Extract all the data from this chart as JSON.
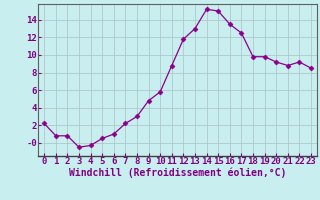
{
  "x": [
    0,
    1,
    2,
    3,
    4,
    5,
    6,
    7,
    8,
    9,
    10,
    11,
    12,
    13,
    14,
    15,
    16,
    17,
    18,
    19,
    20,
    21,
    22,
    23
  ],
  "y": [
    2.2,
    0.8,
    0.8,
    -0.5,
    -0.3,
    0.5,
    1.0,
    2.2,
    3.0,
    4.8,
    5.8,
    8.8,
    11.8,
    13.0,
    15.2,
    15.0,
    13.5,
    12.5,
    9.8,
    9.8,
    9.2,
    8.8,
    9.2,
    8.5
  ],
  "line_color": "#8b008b",
  "marker": "D",
  "marker_size": 2.5,
  "bg_color": "#c8eef0",
  "grid_color": "#b0c8c8",
  "xlabel": "Windchill (Refroidissement éolien,°C)",
  "xlim": [
    -0.5,
    23.5
  ],
  "ylim": [
    -1.5,
    15.8
  ],
  "yticks": [
    0,
    2,
    4,
    6,
    8,
    10,
    12,
    14
  ],
  "ytick_labels": [
    "-0",
    "2",
    "4",
    "6",
    "8",
    "10",
    "12",
    "14"
  ],
  "xticks": [
    0,
    1,
    2,
    3,
    4,
    5,
    6,
    7,
    8,
    9,
    10,
    11,
    12,
    13,
    14,
    15,
    16,
    17,
    18,
    19,
    20,
    21,
    22,
    23
  ],
  "font_color": "#800080",
  "font_size": 6.5,
  "xlabel_font_size": 7.0
}
